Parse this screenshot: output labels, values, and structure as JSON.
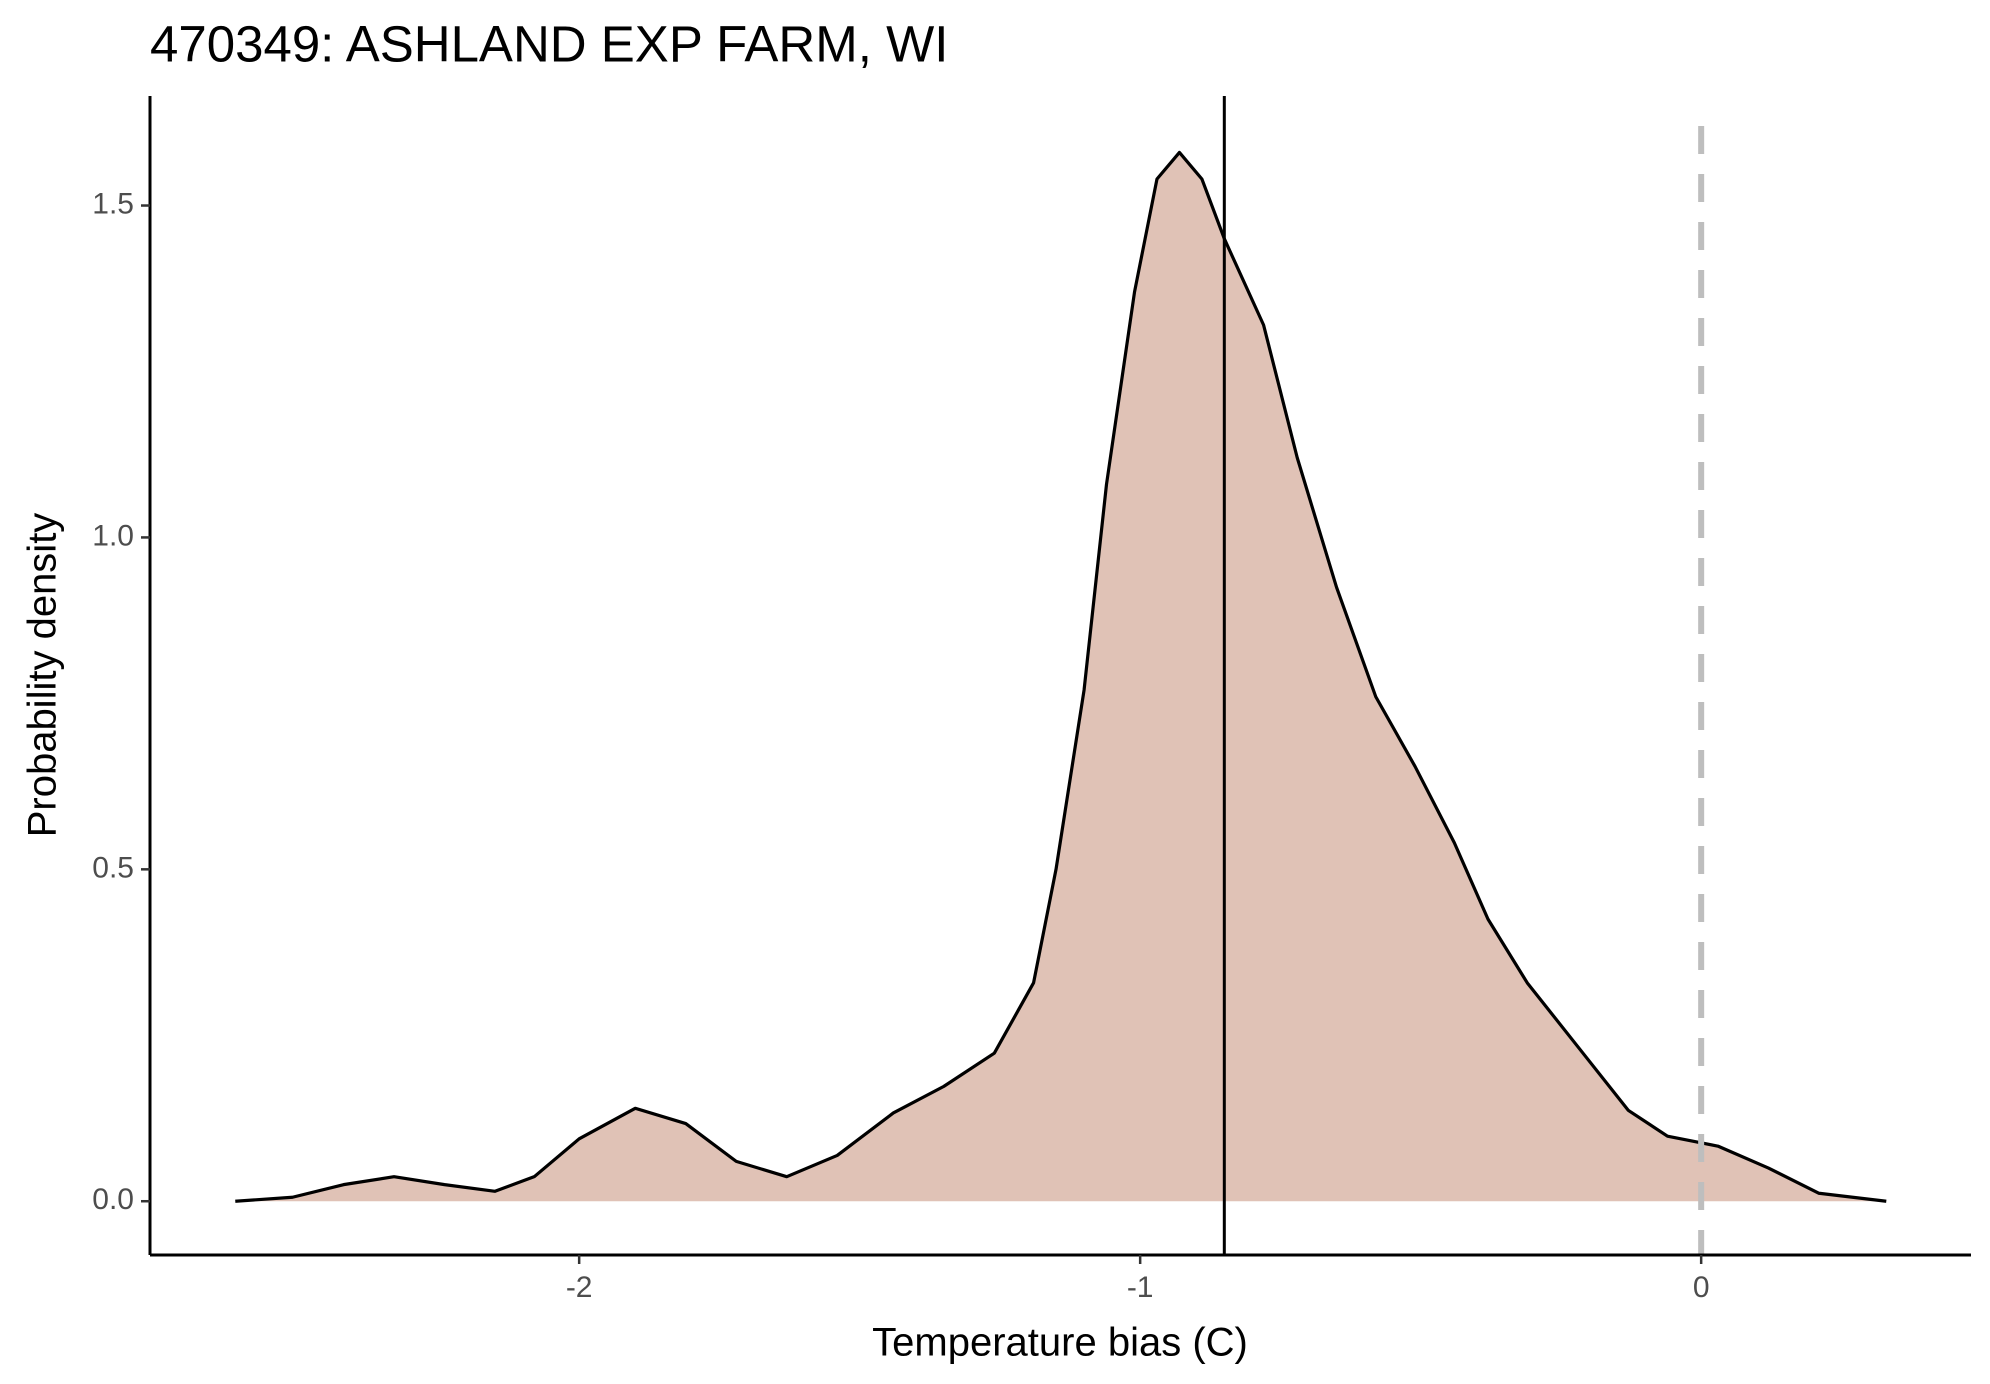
{
  "chart_data": {
    "type": "area",
    "title": "470349: ASHLAND EXP FARM, WI",
    "x_label": "Temperature bias (C)",
    "y_label": "Probability density",
    "x": [
      -2.613,
      -2.511,
      -2.42,
      -2.33,
      -2.24,
      -2.15,
      -2.08,
      -2.0,
      -1.9,
      -1.81,
      -1.72,
      -1.63,
      -1.54,
      -1.44,
      -1.35,
      -1.26,
      -1.19,
      -1.15,
      -1.1,
      -1.06,
      -1.01,
      -0.97,
      -0.93,
      -0.89,
      -0.85,
      -0.78,
      -0.72,
      -0.65,
      -0.58,
      -0.51,
      -0.44,
      -0.38,
      -0.31,
      -0.22,
      -0.13,
      -0.06,
      0.03,
      0.12,
      0.21,
      0.33
    ],
    "values": [
      0,
      0.006,
      0.025,
      0.037,
      0.025,
      0.015,
      0.037,
      0.094,
      0.14,
      0.117,
      0.06,
      0.037,
      0.069,
      0.133,
      0.173,
      0.223,
      0.329,
      0.5,
      0.77,
      1.08,
      1.37,
      1.54,
      1.58,
      1.54,
      1.45,
      1.32,
      1.12,
      0.925,
      0.76,
      0.655,
      0.54,
      0.425,
      0.329,
      0.233,
      0.137,
      0.098,
      0.083,
      0.05,
      0.012,
      0
    ],
    "color": "#e0c2b6",
    "line_color": "#000000",
    "vlines": [
      {
        "value": -0.85,
        "color": "#000000",
        "dashed": false
      },
      {
        "value": 0,
        "color": "#bebebe",
        "dashed": true
      }
    ],
    "xlim": [
      -2.765,
      0.481
    ],
    "ylim": [
      -0.081,
      1.665
    ],
    "xticks": [
      -2,
      -1,
      0
    ],
    "yticks": [
      {
        "value": 0,
        "label": "0.0"
      },
      0.5,
      {
        "value": 1,
        "label": "1.0"
      },
      1.5
    ],
    "grid": false
  }
}
